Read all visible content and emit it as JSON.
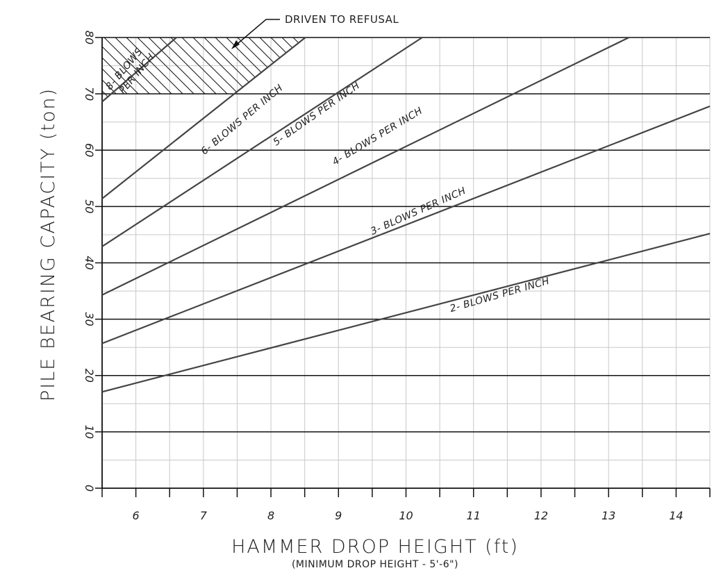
{
  "chart_data": {
    "type": "line",
    "xlabel": "HAMMER DROP HEIGHT (ft)",
    "xlabel_sub": "(MINIMUM DROP HEIGHT - 5'-6\")",
    "ylabel": "PILE BEARING CAPACITY (ton)",
    "xlim": [
      5.5,
      14.5
    ],
    "ylim": [
      0,
      80
    ],
    "x_ticks": [
      6,
      7,
      8,
      9,
      10,
      11,
      12,
      13,
      14
    ],
    "y_ticks": [
      0,
      10,
      20,
      30,
      40,
      50,
      60,
      70,
      80
    ],
    "grid": true,
    "refusal_limit": 70,
    "refusal_label": "DRIVEN TO REFUSAL",
    "series": [
      {
        "name": "2- BLOWS PER INCH",
        "x": [
          5.5,
          14.5
        ],
        "y": [
          17.1,
          45.2
        ]
      },
      {
        "name": "3- BLOWS PER INCH",
        "x": [
          5.5,
          14.5
        ],
        "y": [
          25.7,
          67.8
        ]
      },
      {
        "name": "4- BLOWS PER INCH",
        "x": [
          5.5,
          13.3
        ],
        "y": [
          34.3,
          80
        ]
      },
      {
        "name": "5- BLOWS PER INCH",
        "x": [
          5.5,
          10.24
        ],
        "y": [
          42.9,
          80
        ]
      },
      {
        "name": "6- BLOWS PER INCH",
        "x": [
          5.5,
          8.51
        ],
        "y": [
          51.4,
          80
        ]
      },
      {
        "name": "8- BLOWS PER INCH",
        "x": [
          5.5,
          6.6
        ],
        "y": [
          68.6,
          80
        ]
      }
    ],
    "curve_labels": [
      {
        "text": "2- BLOWS PER INCH",
        "x": 11.4,
        "y": 33.8,
        "angle": -16
      },
      {
        "text": "3- BLOWS PER INCH",
        "x": 10.2,
        "y": 48.7,
        "angle": -24
      },
      {
        "text": "4- BLOWS PER INCH",
        "x": 9.6,
        "y": 62.0,
        "angle": -31
      },
      {
        "text": "5- BLOWS PER INCH",
        "x": 8.7,
        "y": 66.0,
        "angle": -35
      },
      {
        "text": "6- BLOWS PER INCH",
        "x": 7.6,
        "y": 65.0,
        "angle": -40
      }
    ],
    "label_8": {
      "line1": "8- BLOWS",
      "line2": "PER INCH"
    }
  }
}
